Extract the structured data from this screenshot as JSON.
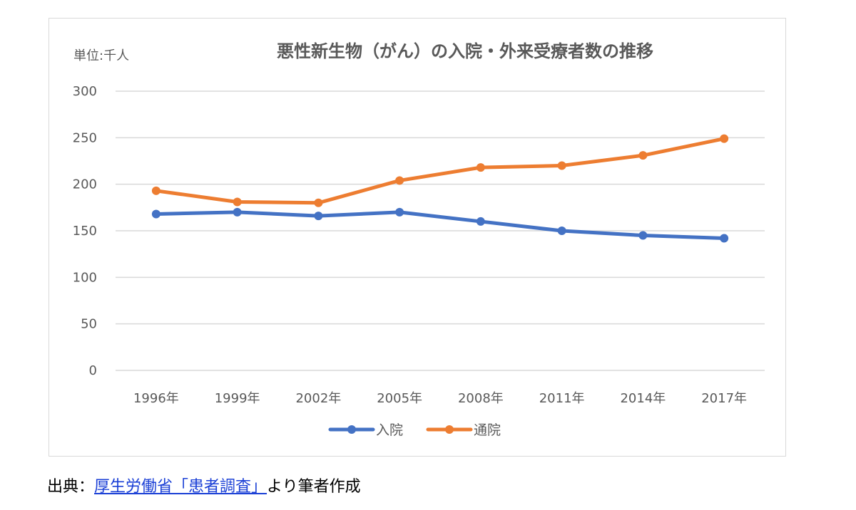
{
  "chart_data": {
    "type": "line",
    "title": "悪性新生物（がん）の入院・外来受療者数の推移",
    "unit_label": "単位:千人",
    "categories": [
      "1996年",
      "1999年",
      "2002年",
      "2005年",
      "2008年",
      "2011年",
      "2014年",
      "2017年"
    ],
    "ylim": [
      0,
      300
    ],
    "yticks": [
      0,
      50,
      100,
      150,
      200,
      250,
      300
    ],
    "grid": true,
    "legend_position": "bottom",
    "series": [
      {
        "name": "入院",
        "color": "#4472c4",
        "values": [
          168,
          170,
          166,
          170,
          160,
          150,
          145,
          142
        ]
      },
      {
        "name": "通院",
        "color": "#ed7d31",
        "values": [
          193,
          181,
          180,
          204,
          218,
          220,
          231,
          249
        ]
      }
    ]
  },
  "source": {
    "prefix": "出典：",
    "link_text": "厚生労働省「患者調査」",
    "suffix": "より筆者作成"
  }
}
